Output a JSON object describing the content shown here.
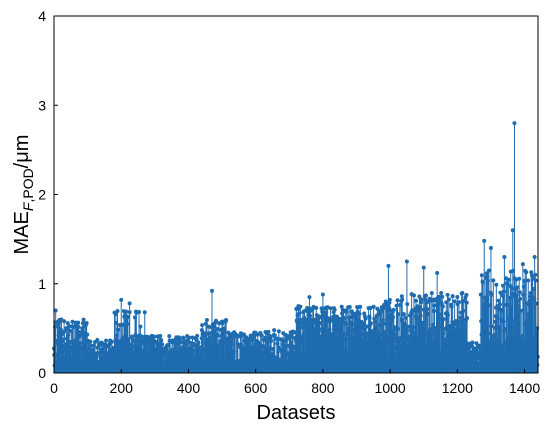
{
  "chart_data": {
    "type": "scatter",
    "style": "stem",
    "xlabel": "Datasets",
    "ylabel": {
      "base": "MAE",
      "subscript_italic": "F",
      "subscript_rest": ",POD",
      "unit": "/μm"
    },
    "xlim": [
      0,
      1440
    ],
    "ylim": [
      0,
      4
    ],
    "xticks": [
      0,
      200,
      400,
      600,
      800,
      1000,
      1200,
      1400
    ],
    "yticks": [
      0,
      1,
      2,
      3,
      4
    ],
    "grid": false,
    "series_color": "#1f6cb0",
    "segments": [
      {
        "from": 0,
        "to": 100,
        "base": 0.42,
        "amp": 0.18
      },
      {
        "from": 100,
        "to": 180,
        "base": 0.25,
        "amp": 0.13
      },
      {
        "from": 180,
        "to": 260,
        "base": 0.45,
        "amp": 0.25
      },
      {
        "from": 260,
        "to": 440,
        "base": 0.3,
        "amp": 0.12
      },
      {
        "from": 440,
        "to": 520,
        "base": 0.4,
        "amp": 0.2
      },
      {
        "from": 520,
        "to": 600,
        "base": 0.32,
        "amp": 0.14
      },
      {
        "from": 600,
        "to": 720,
        "base": 0.3,
        "amp": 0.18
      },
      {
        "from": 720,
        "to": 980,
        "base": 0.55,
        "amp": 0.2
      },
      {
        "from": 980,
        "to": 1230,
        "base": 0.6,
        "amp": 0.3
      },
      {
        "from": 1230,
        "to": 1270,
        "base": 0.25,
        "amp": 0.1
      },
      {
        "from": 1270,
        "to": 1440,
        "base": 0.7,
        "amp": 0.45
      }
    ],
    "peaks": [
      {
        "x": 5,
        "y": 0.7
      },
      {
        "x": 200,
        "y": 0.82
      },
      {
        "x": 225,
        "y": 0.78
      },
      {
        "x": 270,
        "y": 0.68
      },
      {
        "x": 470,
        "y": 0.92
      },
      {
        "x": 760,
        "y": 0.85
      },
      {
        "x": 800,
        "y": 0.88
      },
      {
        "x": 995,
        "y": 1.2
      },
      {
        "x": 1050,
        "y": 1.25
      },
      {
        "x": 1100,
        "y": 1.18
      },
      {
        "x": 1140,
        "y": 1.12
      },
      {
        "x": 1280,
        "y": 1.48
      },
      {
        "x": 1300,
        "y": 1.4
      },
      {
        "x": 1340,
        "y": 1.3
      },
      {
        "x": 1365,
        "y": 1.6
      },
      {
        "x": 1370,
        "y": 2.8
      },
      {
        "x": 1395,
        "y": 1.22
      },
      {
        "x": 1430,
        "y": 1.3
      }
    ]
  }
}
